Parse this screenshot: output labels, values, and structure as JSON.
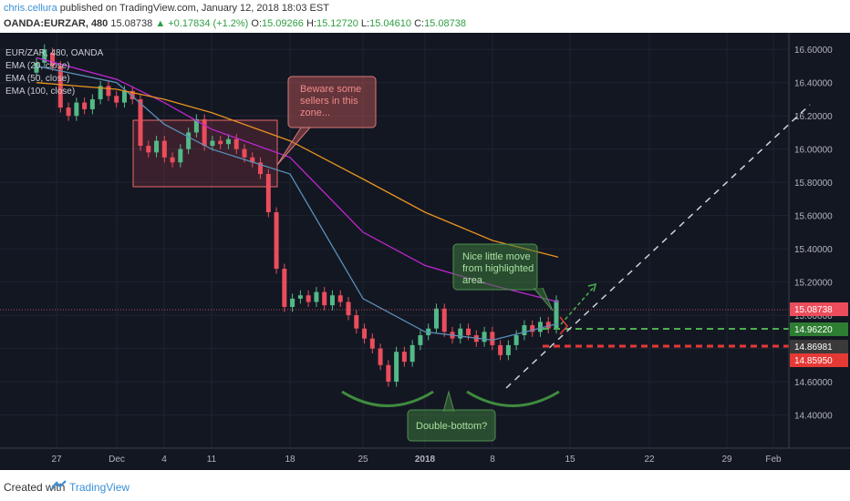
{
  "header": {
    "author": "chris.cellura",
    "published": "published on TradingView.com, January 12, 2018 18:03 EST",
    "symbol": "OANDA:EURZAR, 480",
    "last": "15.08738",
    "change": "▲ +0.17834 (+1.2%)",
    "o_label": "O:",
    "o": "15.09266",
    "h_label": "H:",
    "h": "15.12720",
    "l_label": "L:",
    "l": "15.04610",
    "c_label": "C:",
    "c": "15.08738"
  },
  "legend": {
    "title": "EUR/ZAR, 480, OANDA",
    "ema20": "EMA (20, close)",
    "ema50": "EMA (50, close)",
    "ema100": "EMA (100, close)"
  },
  "annotations": {
    "callout1": [
      "Beware some",
      "sellers in this",
      "zone..."
    ],
    "callout2": [
      "Nice little move",
      "from highlighted",
      "area."
    ],
    "callout3": "Double-bottom?"
  },
  "price_labels": {
    "current": "15.08738",
    "green": "14.96220",
    "dark": "14.86981",
    "red": "14.85950"
  },
  "footer": {
    "created": "Created with",
    "brand": "TradingView"
  },
  "colors": {
    "background": "#131722",
    "bull": "#53b987",
    "bear": "#eb4d5c",
    "ema20": "#5b8fb9",
    "ema50": "#c026d3",
    "ema100": "#e8931f"
  },
  "chart_data": {
    "type": "line",
    "title": "EUR/ZAR, 480, OANDA",
    "xlabel": "",
    "ylabel": "",
    "ylim": [
      14.2,
      16.7
    ],
    "y_ticks": [
      "16.60000",
      "16.40000",
      "16.20000",
      "16.00000",
      "15.80000",
      "15.60000",
      "15.40000",
      "15.20000",
      "15.00000",
      "14.80000",
      "14.60000",
      "14.40000"
    ],
    "x_ticks": [
      "27",
      "Dec",
      "4",
      "11",
      "18",
      "25",
      "2018",
      "8",
      "15",
      "22",
      "29",
      "Feb"
    ],
    "legend_position": "top-left",
    "grid": true,
    "series": [
      {
        "name": "EMA (20, close)",
        "color": "#5b8fb9",
        "x": [
          "27",
          "Dec",
          "4",
          "11",
          "18",
          "25",
          "2018",
          "8",
          "15"
        ],
        "values": [
          16.5,
          16.4,
          16.15,
          16.0,
          15.85,
          15.1,
          14.9,
          14.85,
          14.95
        ]
      },
      {
        "name": "EMA (50, close)",
        "color": "#c026d3",
        "x": [
          "27",
          "Dec",
          "4",
          "11",
          "18",
          "25",
          "2018",
          "8",
          "15"
        ],
        "values": [
          16.55,
          16.42,
          16.28,
          16.12,
          15.95,
          15.5,
          15.3,
          15.18,
          15.08
        ]
      },
      {
        "name": "EMA (100, close)",
        "color": "#e8931f",
        "x": [
          "27",
          "Dec",
          "4",
          "11",
          "18",
          "25",
          "2018",
          "8",
          "15"
        ],
        "values": [
          16.4,
          16.36,
          16.3,
          16.22,
          16.05,
          15.82,
          15.62,
          15.45,
          15.35
        ]
      }
    ],
    "price_levels": [
      15.08738,
      14.9622,
      14.86981,
      14.8595
    ]
  }
}
